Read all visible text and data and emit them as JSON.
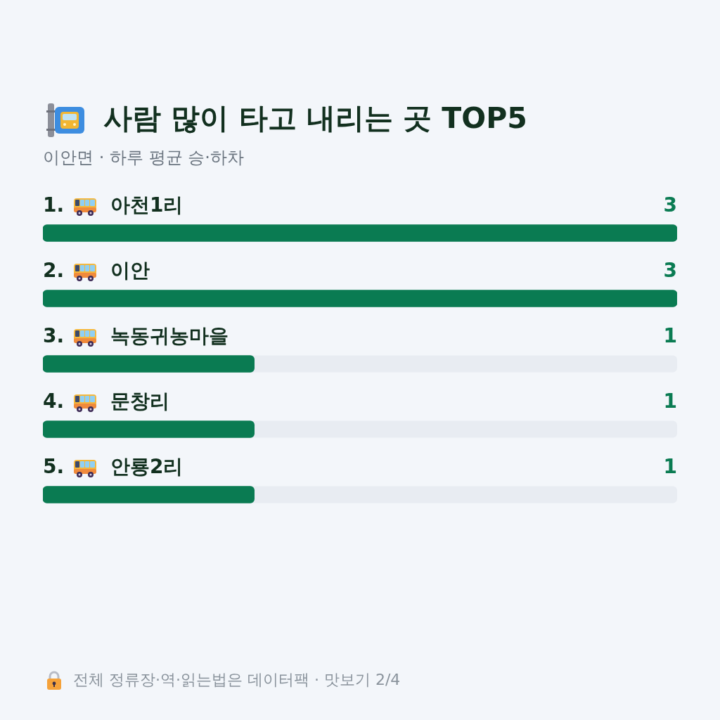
{
  "chart_data": {
    "type": "bar",
    "orientation": "horizontal",
    "title": "사람 많이 타고 내리는 곳 TOP5",
    "subtitle": "이안면 · 하루 평균 승·하차",
    "categories": [
      "1. 아천1리",
      "2. 이안",
      "3. 녹동귀농마을",
      "4. 문창리",
      "5. 안룡2리"
    ],
    "values": [
      3,
      3,
      1,
      1,
      1
    ],
    "color": "#0a7b52",
    "xlim": [
      0,
      3
    ],
    "data_labels": true,
    "annotations": [
      "전체 정류장·역·읽는법은 데이터팩 · 맛보기 2/4"
    ]
  }
}
